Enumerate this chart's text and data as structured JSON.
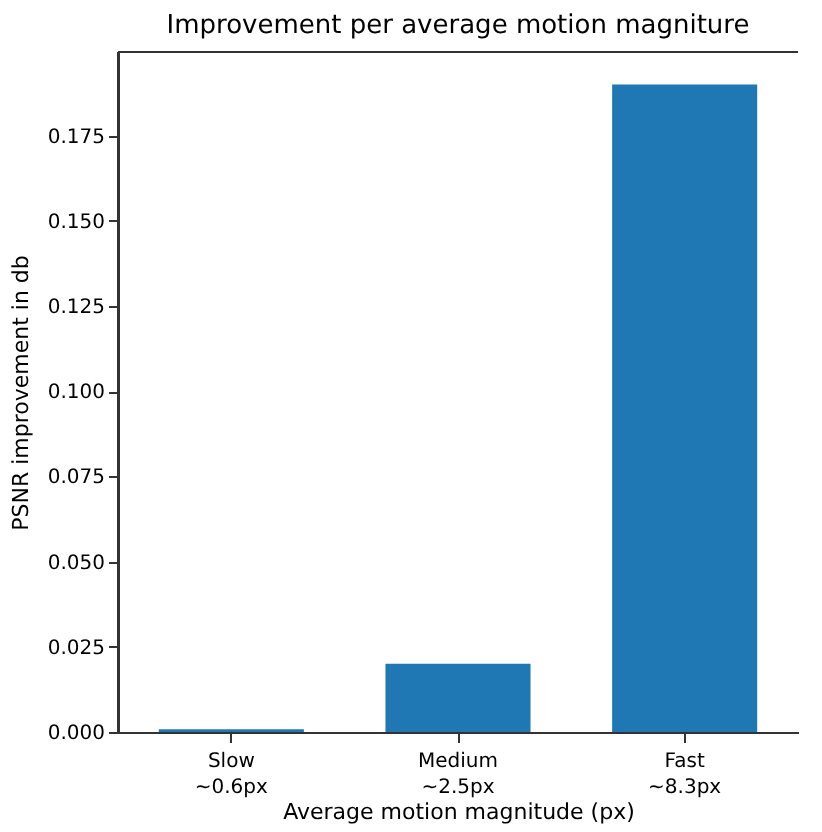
{
  "chart_data": {
    "type": "bar",
    "title": "Improvement per average motion magniture",
    "xlabel": "Average motion magnitude (px)",
    "ylabel": "PSNR improvement in db",
    "categories": [
      "Slow\n~0.6px",
      "Medium\n~2.5px",
      "Fast\n~8.3px"
    ],
    "values": [
      0.0008,
      0.02,
      0.19
    ],
    "color": "#1f77b4",
    "ylim": [
      0,
      0.1995
    ],
    "yticks": [
      {
        "value": 0,
        "label": "0.000"
      },
      0.025,
      {
        "value": 0.05,
        "label": "0.050"
      },
      0.075,
      {
        "value": 0.1,
        "label": "0.100"
      },
      0.125,
      {
        "value": 0.15,
        "label": "0.150"
      },
      0.175
    ],
    "grid": false
  }
}
